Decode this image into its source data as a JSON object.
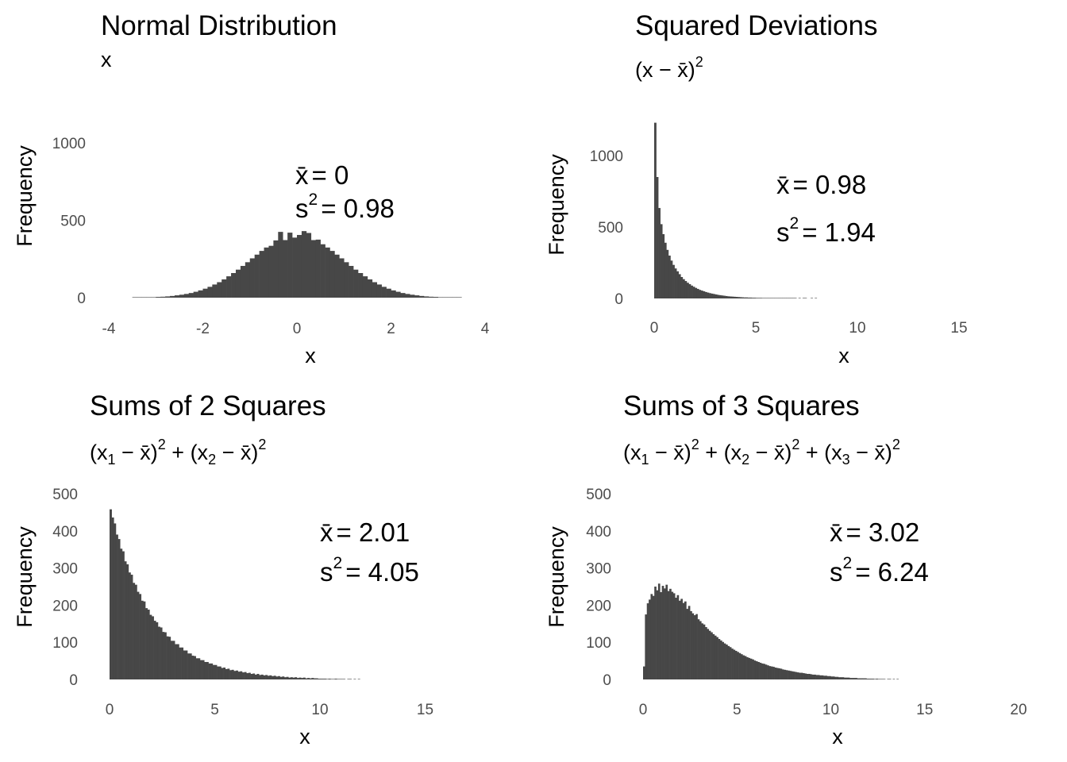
{
  "chart_data": [
    {
      "type": "bar",
      "title": "Normal Distribution",
      "subtitle": [
        {
          "t": "x",
          "k": "n"
        }
      ],
      "xlabel": "x",
      "ylabel": "Frequency",
      "xlim": [
        -4,
        4
      ],
      "ylim": [
        0,
        1000
      ],
      "xticks": [
        "-4",
        "-2",
        "0",
        "2",
        "4"
      ],
      "xtick_values": [
        -4,
        -2,
        0,
        2,
        4
      ],
      "yticks": [
        "0",
        "500",
        "1000"
      ],
      "ytick_values": [
        0,
        500,
        1000
      ],
      "grid": false,
      "bin_start": -3.5,
      "bin_width": 0.1,
      "counts": [
        1,
        1,
        2,
        3,
        3,
        5,
        6,
        8,
        11,
        15,
        19,
        24,
        30,
        38,
        47,
        58,
        70,
        85,
        100,
        118,
        138,
        159,
        181,
        205,
        229,
        254,
        278,
        302,
        324,
        335,
        370,
        425,
        372,
        420,
        388,
        405,
        430,
        418,
        372,
        375,
        345,
        324,
        302,
        278,
        254,
        229,
        205,
        181,
        159,
        138,
        118,
        100,
        85,
        70,
        58,
        47,
        38,
        30,
        24,
        19,
        15,
        11,
        8,
        6,
        5,
        3,
        3,
        2,
        1,
        1
      ],
      "annotation": {
        "mean_symbol": "x̄",
        "mean_value": "= 0",
        "var_symbol": "s",
        "var_power": "2",
        "var_value": "= 0.98"
      }
    },
    {
      "type": "bar",
      "title": "Squared Deviations",
      "subtitle": [
        {
          "t": "(x − x̄)",
          "k": "n"
        },
        {
          "t": "2",
          "k": "sup"
        }
      ],
      "xlabel": "x",
      "ylabel": "Frequency",
      "xlim": [
        0,
        19
      ],
      "ylim": [
        0,
        1200
      ],
      "xticks": [
        "0",
        "5",
        "10",
        "15"
      ],
      "xtick_values": [
        0,
        5,
        10,
        15
      ],
      "yticks": [
        "0",
        "500",
        "1000"
      ],
      "ytick_values": [
        0,
        500,
        1000
      ],
      "grid": false,
      "bin_start": 0,
      "bin_width": 0.1,
      "counts": [
        1230,
        850,
        633,
        520,
        450,
        390,
        340,
        300,
        265,
        235,
        210,
        190,
        170,
        150,
        135,
        122,
        110,
        100,
        90,
        82,
        74,
        67,
        60,
        55,
        50,
        45,
        41,
        37,
        34,
        31,
        28,
        25,
        23,
        21,
        19,
        17,
        15,
        14,
        13,
        12,
        11,
        10,
        9,
        8,
        7,
        7,
        6,
        6,
        5,
        5,
        4,
        4,
        4,
        3,
        3,
        3,
        3,
        2,
        2,
        2,
        2,
        2,
        2,
        1,
        1,
        1,
        1,
        1,
        1,
        1,
        0,
        1,
        0,
        1,
        1,
        0,
        0,
        1,
        0,
        1
      ],
      "annotation": {
        "mean_symbol": "x̄",
        "mean_value": "= 0.98",
        "var_symbol": "s",
        "var_power": "2",
        "var_value": "= 1.94"
      }
    },
    {
      "type": "bar",
      "title": "Sums of 2 Squares",
      "subtitle": [
        {
          "t": "(x",
          "k": "n"
        },
        {
          "t": "1",
          "k": "sub"
        },
        {
          "t": " − x̄)",
          "k": "n"
        },
        {
          "t": "2",
          "k": "sup"
        },
        {
          "t": " + (x",
          "k": "n"
        },
        {
          "t": "2",
          "k": "sub"
        },
        {
          "t": " − x̄)",
          "k": "n"
        },
        {
          "t": "2",
          "k": "sup"
        }
      ],
      "xlabel": "x",
      "ylabel": "Frequency",
      "xlim": [
        0,
        18.5
      ],
      "ylim": [
        0,
        500
      ],
      "xticks": [
        "0",
        "5",
        "10",
        "15"
      ],
      "xtick_values": [
        0,
        5,
        10,
        15
      ],
      "yticks": [
        "0",
        "100",
        "200",
        "300",
        "400",
        "500"
      ],
      "ytick_values": [
        0,
        100,
        200,
        300,
        400,
        500
      ],
      "grid": false,
      "bin_start": 0,
      "bin_width": 0.1,
      "counts": [
        458,
        436,
        420,
        390,
        378,
        352,
        345,
        318,
        310,
        288,
        282,
        260,
        255,
        236,
        230,
        212,
        210,
        192,
        188,
        174,
        170,
        158,
        154,
        142,
        140,
        128,
        127,
        116,
        115,
        104,
        104,
        95,
        95,
        86,
        86,
        78,
        78,
        70,
        70,
        64,
        63,
        57,
        57,
        52,
        52,
        47,
        47,
        43,
        43,
        39,
        39,
        35,
        35,
        31,
        32,
        28,
        29,
        25,
        26,
        23,
        24,
        21,
        22,
        19,
        20,
        17,
        18,
        15,
        16,
        13,
        15,
        12,
        13,
        11,
        12,
        10,
        11,
        9,
        10,
        8,
        9,
        7,
        8,
        6,
        7,
        5,
        6,
        5,
        6,
        4,
        5,
        4,
        5,
        3,
        4,
        3,
        4,
        3,
        3,
        2,
        2,
        2,
        2,
        1,
        2,
        1,
        1,
        2,
        1,
        1,
        1,
        1,
        0,
        1,
        1,
        0,
        1,
        0,
        1,
        0
      ],
      "annotation": {
        "mean_symbol": "x̄",
        "mean_value": "= 2.01",
        "var_symbol": "s",
        "var_power": "2",
        "var_value": "= 4.05"
      }
    },
    {
      "type": "bar",
      "title": "Sums of 3 Squares",
      "subtitle": [
        {
          "t": "(x",
          "k": "n"
        },
        {
          "t": "1",
          "k": "sub"
        },
        {
          "t": " − x̄)",
          "k": "n"
        },
        {
          "t": "2",
          "k": "sup"
        },
        {
          "t": " + (x",
          "k": "n"
        },
        {
          "t": "2",
          "k": "sub"
        },
        {
          "t": " − x̄)",
          "k": "n"
        },
        {
          "t": "2",
          "k": "sup"
        },
        {
          "t": " + (x",
          "k": "n"
        },
        {
          "t": "3",
          "k": "sub"
        },
        {
          "t": " − x̄)",
          "k": "n"
        },
        {
          "t": "2",
          "k": "sup"
        }
      ],
      "xlabel": "x",
      "ylabel": "Frequency",
      "xlim": [
        0,
        20.5
      ],
      "ylim": [
        0,
        500
      ],
      "xticks": [
        "0",
        "5",
        "10",
        "15",
        "20"
      ],
      "xtick_values": [
        0,
        5,
        10,
        15,
        20
      ],
      "yticks": [
        "0",
        "100",
        "200",
        "300",
        "400",
        "500"
      ],
      "ytick_values": [
        0,
        100,
        200,
        300,
        400,
        500
      ],
      "grid": false,
      "bin_start": 0,
      "bin_width": 0.1,
      "counts": [
        35,
        175,
        205,
        215,
        230,
        225,
        250,
        240,
        258,
        235,
        252,
        245,
        255,
        238,
        244,
        236,
        232,
        220,
        227,
        212,
        217,
        206,
        210,
        190,
        198,
        184,
        178,
        173,
        176,
        162,
        157,
        151,
        148,
        141,
        136,
        131,
        127,
        122,
        118,
        114,
        109,
        105,
        101,
        97,
        94,
        90,
        87,
        83,
        80,
        77,
        74,
        71,
        68,
        65,
        63,
        60,
        58,
        56,
        54,
        51,
        49,
        47,
        45,
        43,
        42,
        40,
        38,
        36,
        35,
        34,
        32,
        31,
        30,
        29,
        27,
        26,
        25,
        24,
        23,
        22,
        21,
        20,
        19,
        18,
        18,
        17,
        16,
        15,
        15,
        14,
        13,
        13,
        12,
        12,
        11,
        11,
        10,
        10,
        9,
        9,
        8,
        8,
        7,
        7,
        6,
        6,
        6,
        5,
        5,
        5,
        4,
        4,
        4,
        4,
        3,
        3,
        3,
        3,
        3,
        2,
        2,
        2,
        2,
        1,
        2,
        1,
        1,
        1,
        1,
        0,
        1,
        1,
        0,
        1,
        0,
        1
      ],
      "annotation": {
        "mean_symbol": "x̄",
        "mean_value": "= 3.02",
        "var_symbol": "s",
        "var_power": "2",
        "var_value": "= 6.24"
      }
    }
  ],
  "colors": {
    "bars": "#474747",
    "tick_labels": "#4d4d4d",
    "text": "#000000",
    "background": "#ffffff"
  }
}
